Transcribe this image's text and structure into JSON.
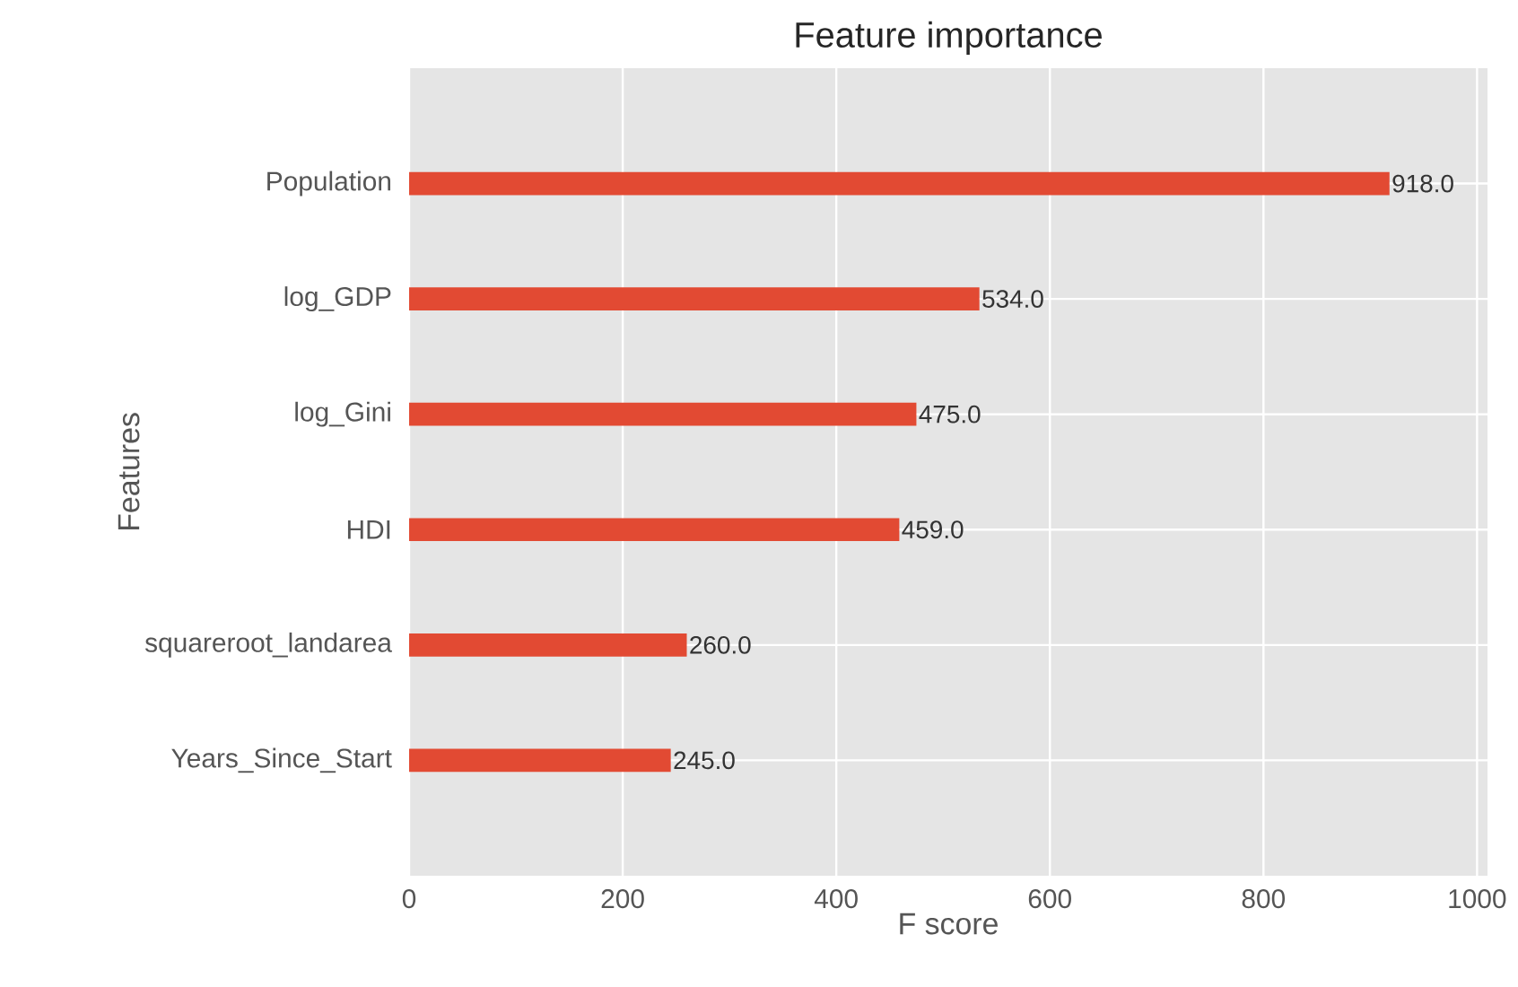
{
  "chart_data": {
    "type": "bar",
    "orientation": "horizontal",
    "title": "Feature importance",
    "xlabel": "F score",
    "ylabel": "Features",
    "categories": [
      "Population",
      "log_GDP",
      "log_Gini",
      "HDI",
      "squareroot_landarea",
      "Years_Since_Start"
    ],
    "values": [
      918,
      534,
      475,
      459,
      260,
      245
    ],
    "value_labels": [
      "918.0",
      "534.0",
      "475.0",
      "459.0",
      "260.0",
      "245.0"
    ],
    "color": "#e24a33",
    "xlim": [
      0,
      1009.8
    ],
    "xticks": [
      0,
      200,
      400,
      600,
      800,
      1000
    ],
    "grid": true
  }
}
